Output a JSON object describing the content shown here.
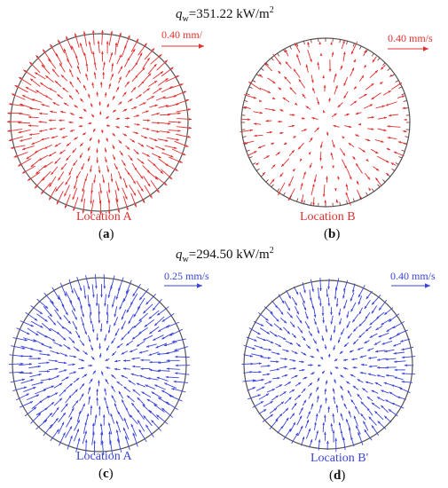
{
  "colors": {
    "red": "#e0302f",
    "blue": "#3a44d8",
    "circle": "#555555"
  },
  "group1": {
    "heading": {
      "q": "q",
      "sub": "w",
      "value": "=351.22 kW/m",
      "sup": "2"
    }
  },
  "group2": {
    "heading": {
      "q": "q",
      "sub": "w",
      "value": "=294.50 kW/m",
      "sup": "2"
    }
  },
  "panels": [
    {
      "id": "a",
      "label_open": "(",
      "label_letter": "a",
      "label_close": ")",
      "location": "Location A",
      "scale_text": "0.40 mm/",
      "color": "#e0302f",
      "pattern": "outward-dense"
    },
    {
      "id": "b",
      "label_open": "(",
      "label_letter": "b",
      "label_close": ")",
      "location": "Location B",
      "scale_text": "0.40 mm/s",
      "color": "#e0302f",
      "pattern": "sparse-mixed"
    },
    {
      "id": "c",
      "label_open": "(",
      "label_letter": "c",
      "label_close": ")",
      "location": "Location A",
      "scale_text": "0.25 mm/s",
      "color": "#3a44d8",
      "pattern": "inward-dense"
    },
    {
      "id": "d",
      "label_open": "(",
      "label_letter": "d",
      "label_close": ")",
      "location": "Location B'",
      "scale_text": "0.40 mm/s",
      "color": "#3a44d8",
      "pattern": "inward-medium"
    }
  ]
}
